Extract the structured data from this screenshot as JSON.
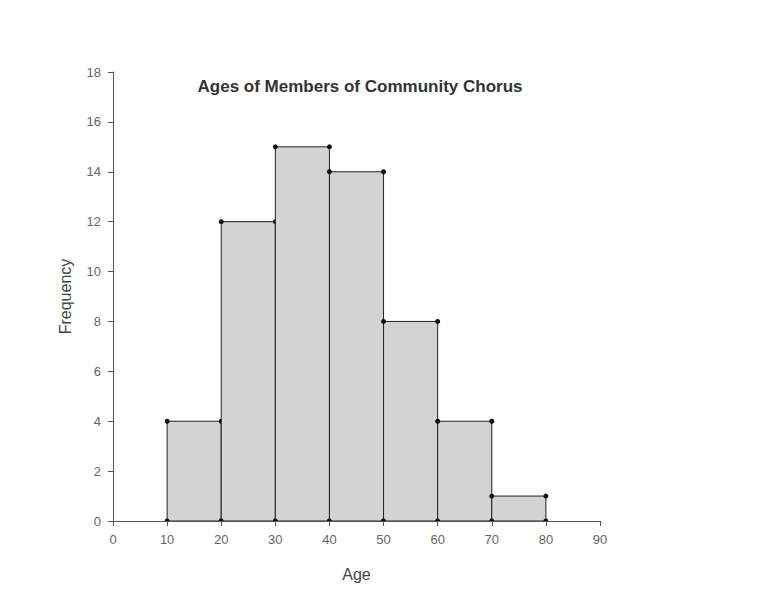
{
  "chart_data": {
    "type": "histogram",
    "title": "Ages of Members of Community Chorus",
    "x_label": "Age",
    "y_label": "Frequency",
    "bins": [
      10,
      20,
      30,
      40,
      50,
      60,
      70,
      80
    ],
    "values": [
      4,
      12,
      15,
      14,
      8,
      4,
      1
    ],
    "color": "#d3d3d3",
    "xlim": [
      0,
      90
    ],
    "xticks": [
      0,
      10,
      20,
      30,
      40,
      50,
      60,
      70,
      80,
      90
    ],
    "ylim": [
      0,
      18
    ],
    "yticks": [
      0,
      2,
      4,
      6,
      8,
      10,
      12,
      14,
      16,
      18
    ],
    "grid": false
  }
}
